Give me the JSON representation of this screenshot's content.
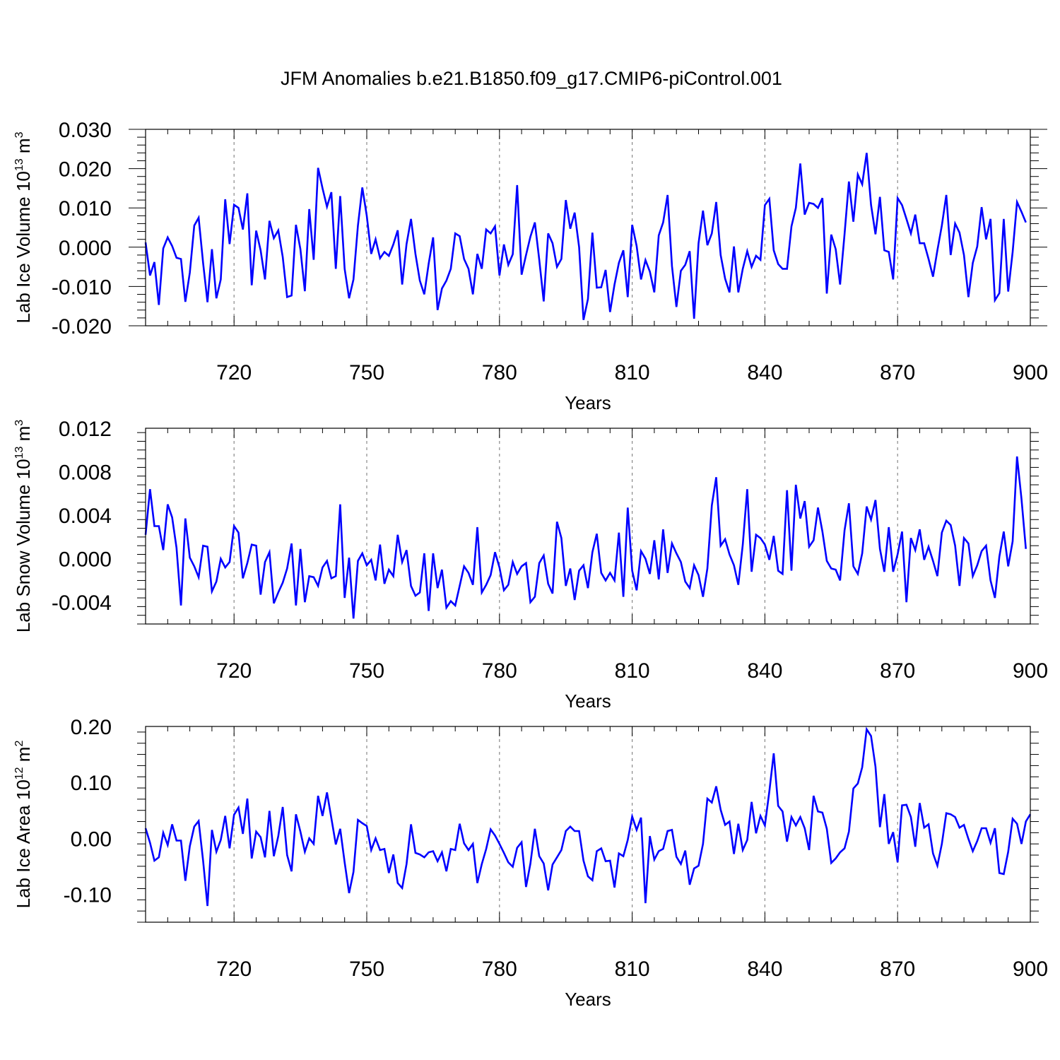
{
  "title": "JFM Anomalies b.e21.B1850.f09_g17.CMIP6-piControl.001",
  "line_color": "#0000ff",
  "chart_data": [
    {
      "type": "line",
      "ylabel_main": "Lab Ice Volume 10",
      "ylabel_exp": "13",
      "ylabel_unit": " m",
      "ylabel_unit_exp": "3",
      "xlabel": "Years",
      "xlim": [
        700,
        900
      ],
      "ylim": [
        -0.02,
        0.03
      ],
      "yticks": [
        -0.02,
        -0.01,
        0.0,
        0.01,
        0.02,
        0.03
      ],
      "ytick_labels": [
        "-0.020",
        "-0.010",
        "0.000",
        "0.010",
        "0.020",
        "0.030"
      ],
      "xticks": [
        720,
        750,
        780,
        810,
        840,
        870,
        900
      ],
      "xtick_labels": [
        "720",
        "750",
        "780",
        "810",
        "840",
        "870",
        "900"
      ],
      "x_start": 700,
      "values": [
        0.0012,
        -0.0072,
        -0.0038,
        -0.0147,
        -0.0003,
        0.0025,
        0.0003,
        -0.0027,
        -0.003,
        -0.0139,
        -0.0065,
        0.0055,
        0.0075,
        -0.004,
        -0.014,
        -0.0005,
        -0.013,
        -0.0082,
        0.0122,
        0.0008,
        0.0108,
        0.01,
        0.0045,
        0.0137,
        -0.0097,
        0.0042,
        -0.0008,
        -0.0082,
        0.0067,
        0.0023,
        0.0043,
        -0.0025,
        -0.0127,
        -0.0123,
        0.0057,
        -0.0005,
        -0.0112,
        0.0097,
        -0.0032,
        0.0202,
        0.015,
        0.0103,
        0.014,
        -0.0055,
        0.013,
        -0.0055,
        -0.013,
        -0.0082,
        0.0055,
        0.0152,
        0.008,
        -0.0017,
        0.002,
        -0.0028,
        -0.0012,
        -0.0022,
        0.0007,
        0.0043,
        -0.0095,
        0.0008,
        0.0072,
        -0.0017,
        -0.0085,
        -0.012,
        -0.0042,
        0.0025,
        -0.016,
        -0.0105,
        -0.0085,
        -0.0055,
        0.0035,
        0.0028,
        -0.003,
        -0.0055,
        -0.012,
        -0.0017,
        -0.0055,
        0.0045,
        0.0035,
        0.0053,
        -0.0072,
        0.0007,
        -0.0045,
        -0.0018,
        0.0158,
        -0.007,
        -0.002,
        0.0027,
        0.0063,
        -0.0032,
        -0.0138,
        0.0035,
        0.001,
        -0.005,
        -0.003,
        0.012,
        0.0047,
        0.0088,
        0.0,
        -0.0185,
        -0.0132,
        0.0037,
        -0.0103,
        -0.0102,
        -0.0058,
        -0.0165,
        -0.0095,
        -0.004,
        -0.0008,
        -0.0127,
        0.0057,
        0.0003,
        -0.0082,
        -0.0033,
        -0.0062,
        -0.0115,
        0.003,
        0.0063,
        0.0133,
        -0.0048,
        -0.0152,
        -0.006,
        -0.0045,
        -0.001,
        -0.0182,
        0.001,
        0.0093,
        0.0005,
        0.0035,
        0.0115,
        -0.002,
        -0.008,
        -0.0115,
        0.0002,
        -0.0115,
        -0.0055,
        -0.001,
        -0.005,
        -0.0022,
        -0.0032,
        0.0107,
        0.0123,
        -0.0008,
        -0.0043,
        -0.0055,
        -0.0055,
        0.0053,
        0.01,
        0.0213,
        0.0083,
        0.0113,
        0.011,
        0.01,
        0.0125,
        -0.0118,
        0.0032,
        -0.0005,
        -0.0095,
        0.0033,
        0.0167,
        0.0065,
        0.0185,
        0.016,
        0.024,
        0.0108,
        0.0033,
        0.0128,
        -0.0008,
        -0.0012,
        -0.0082,
        0.0125,
        0.0107,
        0.0072,
        0.0035,
        0.0083,
        0.001,
        0.001,
        -0.003,
        -0.0075,
        -0.0008,
        0.0055,
        0.0133,
        -0.002,
        0.006,
        0.0037,
        -0.002,
        -0.0127,
        -0.004,
        0.0002,
        0.0102,
        0.002,
        0.0072,
        -0.0135,
        -0.0117,
        0.0072,
        -0.0113,
        -0.0012,
        0.0115,
        0.009,
        0.0063
      ]
    },
    {
      "type": "line",
      "ylabel_main": "Lab Snow Volume 10",
      "ylabel_exp": "13",
      "ylabel_unit": " m",
      "ylabel_unit_exp": "3",
      "xlabel": "Years",
      "xlim": [
        700,
        900
      ],
      "ylim": [
        -0.006,
        0.012
      ],
      "yticks": [
        -0.004,
        0.0,
        0.004,
        0.008,
        0.012
      ],
      "ytick_labels": [
        "-0.004",
        "0.000",
        "0.004",
        "0.008",
        "0.012"
      ],
      "xticks": [
        720,
        750,
        780,
        810,
        840,
        870,
        900
      ],
      "xtick_labels": [
        "720",
        "750",
        "780",
        "810",
        "840",
        "870",
        "900"
      ],
      "x_start": 700,
      "values": [
        0.0022,
        0.0064,
        0.003,
        0.003,
        0.0008,
        0.005,
        0.0038,
        0.001,
        -0.0043,
        0.0037,
        0.0001,
        -0.0007,
        -0.0017,
        0.0012,
        0.0011,
        -0.003,
        -0.0021,
        0.0,
        -0.0008,
        -0.0003,
        0.003,
        0.0024,
        -0.0018,
        -0.0004,
        0.0013,
        0.0012,
        -0.0033,
        -0.0003,
        0.0006,
        -0.0041,
        -0.0031,
        -0.0022,
        -0.0009,
        0.0014,
        -0.0043,
        0.0009,
        -0.004,
        -0.0016,
        -0.0017,
        -0.0025,
        -0.0008,
        -0.0002,
        -0.0018,
        -0.0016,
        0.005,
        -0.0036,
        0.0001,
        -0.0055,
        -0.0002,
        0.0005,
        -0.0006,
        -0.0001,
        -0.002,
        0.0013,
        -0.0023,
        -0.001,
        -0.0016,
        0.0022,
        -0.0003,
        0.0008,
        -0.0025,
        -0.0034,
        -0.0031,
        0.0005,
        -0.0048,
        0.0005,
        -0.0027,
        -0.001,
        -0.0045,
        -0.0039,
        -0.0043,
        -0.0025,
        -0.0007,
        -0.0013,
        -0.0024,
        0.0029,
        -0.0031,
        -0.0024,
        -0.0015,
        0.0006,
        -0.0008,
        -0.0029,
        -0.0024,
        -0.0003,
        -0.0014,
        -0.0007,
        -0.0004,
        -0.004,
        -0.0035,
        -0.0004,
        0.0003,
        -0.0023,
        -0.0032,
        0.0034,
        0.0019,
        -0.0025,
        -0.0009,
        -0.0038,
        -0.0011,
        -0.0006,
        -0.0027,
        0.0006,
        0.0023,
        -0.0013,
        -0.002,
        -0.0013,
        -0.002,
        0.0024,
        -0.0035,
        0.0047,
        -0.0011,
        -0.0029,
        0.0007,
        0.0,
        -0.0014,
        0.0017,
        -0.0019,
        0.0027,
        -0.0013,
        0.0014,
        0.0005,
        -0.0003,
        -0.0021,
        -0.0027,
        -0.0006,
        -0.0015,
        -0.0035,
        -0.0009,
        0.0049,
        0.0075,
        0.0012,
        0.0018,
        0.0004,
        -0.0006,
        -0.0024,
        0.0013,
        0.0064,
        -0.0012,
        0.0022,
        0.0019,
        0.0013,
        -0.0001,
        0.0021,
        -0.0011,
        -0.0014,
        0.0063,
        -0.0011,
        0.0068,
        0.0037,
        0.0053,
        0.0011,
        0.0017,
        0.0047,
        0.0025,
        -0.0002,
        -0.0009,
        -0.001,
        -0.002,
        0.0026,
        0.0051,
        -0.0007,
        -0.0014,
        0.0005,
        0.0048,
        0.0036,
        0.0054,
        0.0009,
        -0.0012,
        0.0029,
        -0.0012,
        0.0004,
        0.0025,
        -0.004,
        0.0019,
        0.0008,
        0.0027,
        -0.0001,
        0.0011,
        -0.0002,
        -0.0016,
        0.0024,
        0.0035,
        0.0031,
        0.0012,
        -0.0025,
        0.0019,
        0.0014,
        -0.0016,
        -0.0006,
        0.0007,
        0.0012,
        -0.002,
        -0.0036,
        0.0002,
        0.0025,
        -0.0007,
        0.0016,
        0.0094,
        0.0055,
        0.0009
      ]
    },
    {
      "type": "line",
      "ylabel_main": "Lab Ice Area 10",
      "ylabel_exp": "12",
      "ylabel_unit": " m",
      "ylabel_unit_exp": "2",
      "xlabel": "Years",
      "xlim": [
        700,
        900
      ],
      "ylim": [
        -0.15,
        0.2
      ],
      "yticks": [
        -0.1,
        0.0,
        0.1,
        0.2
      ],
      "ytick_labels": [
        "-0.10",
        "0.00",
        "0.10",
        "0.20"
      ],
      "xticks": [
        720,
        750,
        780,
        810,
        840,
        870,
        900
      ],
      "xtick_labels": [
        "720",
        "750",
        "780",
        "810",
        "840",
        "870",
        "900"
      ],
      "x_start": 700,
      "values": [
        0.018,
        -0.008,
        -0.04,
        -0.034,
        0.01,
        -0.012,
        0.025,
        -0.004,
        -0.004,
        -0.076,
        -0.014,
        0.021,
        0.031,
        -0.04,
        -0.121,
        0.015,
        -0.024,
        -0.003,
        0.04,
        -0.018,
        0.042,
        0.055,
        0.008,
        0.071,
        -0.036,
        0.012,
        0.002,
        -0.034,
        0.049,
        -0.032,
        0.004,
        0.056,
        -0.03,
        -0.059,
        0.043,
        0.012,
        -0.024,
        0.0,
        -0.01,
        0.076,
        0.04,
        0.082,
        0.036,
        -0.011,
        0.017,
        -0.043,
        -0.098,
        -0.06,
        0.033,
        0.027,
        0.022,
        -0.021,
        0.0,
        -0.021,
        -0.019,
        -0.062,
        -0.029,
        -0.08,
        -0.089,
        -0.046,
        0.025,
        -0.026,
        -0.029,
        -0.034,
        -0.025,
        -0.023,
        -0.041,
        -0.025,
        -0.059,
        -0.019,
        -0.021,
        0.026,
        -0.009,
        -0.021,
        -0.01,
        -0.08,
        -0.046,
        -0.019,
        0.016,
        0.005,
        -0.01,
        -0.026,
        -0.043,
        -0.051,
        -0.017,
        -0.007,
        -0.087,
        -0.045,
        0.017,
        -0.032,
        -0.045,
        -0.093,
        -0.047,
        -0.034,
        -0.021,
        0.013,
        0.021,
        0.013,
        0.013,
        -0.04,
        -0.068,
        -0.075,
        -0.023,
        -0.018,
        -0.041,
        -0.04,
        -0.088,
        -0.027,
        -0.032,
        -0.003,
        0.039,
        0.015,
        0.037,
        -0.116,
        0.004,
        -0.038,
        -0.023,
        -0.019,
        0.013,
        0.015,
        -0.033,
        -0.046,
        -0.022,
        -0.083,
        -0.054,
        -0.049,
        -0.01,
        0.071,
        0.064,
        0.093,
        0.051,
        0.024,
        0.03,
        -0.028,
        0.026,
        -0.021,
        -0.003,
        0.065,
        0.009,
        0.04,
        0.023,
        0.084,
        0.152,
        0.058,
        0.048,
        -0.006,
        0.038,
        0.023,
        0.038,
        0.018,
        -0.021,
        0.076,
        0.048,
        0.046,
        0.017,
        -0.044,
        -0.036,
        -0.025,
        -0.018,
        0.012,
        0.089,
        0.098,
        0.127,
        0.195,
        0.183,
        0.128,
        0.02,
        0.079,
        -0.01,
        0.011,
        -0.043,
        0.059,
        0.06,
        0.038,
        -0.015,
        0.063,
        0.019,
        0.025,
        -0.027,
        -0.049,
        -0.01,
        0.045,
        0.043,
        0.038,
        0.019,
        0.024,
        -0.001,
        -0.023,
        -0.005,
        0.018,
        0.018,
        -0.008,
        0.018,
        -0.062,
        -0.064,
        -0.024,
        0.035,
        0.026,
        -0.01,
        0.03,
        0.043
      ]
    }
  ]
}
